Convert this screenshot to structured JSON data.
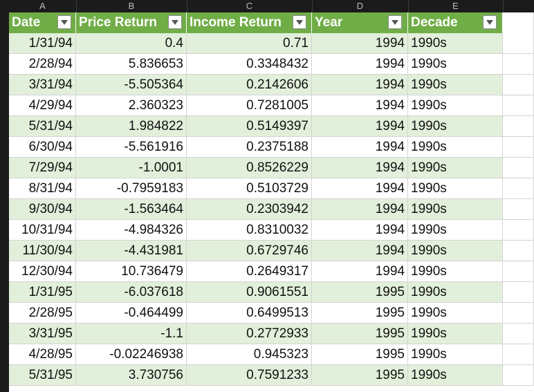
{
  "column_letters": [
    "A",
    "B",
    "C",
    "D",
    "E"
  ],
  "headers": [
    "Date",
    "Price Return",
    "Income Return",
    "Year",
    "Decade"
  ],
  "rows": [
    [
      "1/31/94",
      "0.4",
      "0.71",
      "1994",
      "1990s"
    ],
    [
      "2/28/94",
      "5.836653",
      "0.3348432",
      "1994",
      "1990s"
    ],
    [
      "3/31/94",
      "-5.505364",
      "0.2142606",
      "1994",
      "1990s"
    ],
    [
      "4/29/94",
      "2.360323",
      "0.7281005",
      "1994",
      "1990s"
    ],
    [
      "5/31/94",
      "1.984822",
      "0.5149397",
      "1994",
      "1990s"
    ],
    [
      "6/30/94",
      "-5.561916",
      "0.2375188",
      "1994",
      "1990s"
    ],
    [
      "7/29/94",
      "-1.0001",
      "0.8526229",
      "1994",
      "1990s"
    ],
    [
      "8/31/94",
      "-0.7959183",
      "0.5103729",
      "1994",
      "1990s"
    ],
    [
      "9/30/94",
      "-1.563464",
      "0.2303942",
      "1994",
      "1990s"
    ],
    [
      "10/31/94",
      "-4.984326",
      "0.8310032",
      "1994",
      "1990s"
    ],
    [
      "11/30/94",
      "-4.431981",
      "0.6729746",
      "1994",
      "1990s"
    ],
    [
      "12/30/94",
      "10.736479",
      "0.2649317",
      "1994",
      "1990s"
    ],
    [
      "1/31/95",
      "-6.037618",
      "0.9061551",
      "1995",
      "1990s"
    ],
    [
      "2/28/95",
      "-0.464499",
      "0.6499513",
      "1995",
      "1990s"
    ],
    [
      "3/31/95",
      "-1.1",
      "0.2772933",
      "1995",
      "1990s"
    ],
    [
      "4/28/95",
      "-0.02246938",
      "0.945323",
      "1995",
      "1990s"
    ],
    [
      "5/31/95",
      "3.730756",
      "0.7591233",
      "1995",
      "1990s"
    ]
  ],
  "colors": {
    "header_green": "#70ad47",
    "band_green": "#e2efda"
  }
}
